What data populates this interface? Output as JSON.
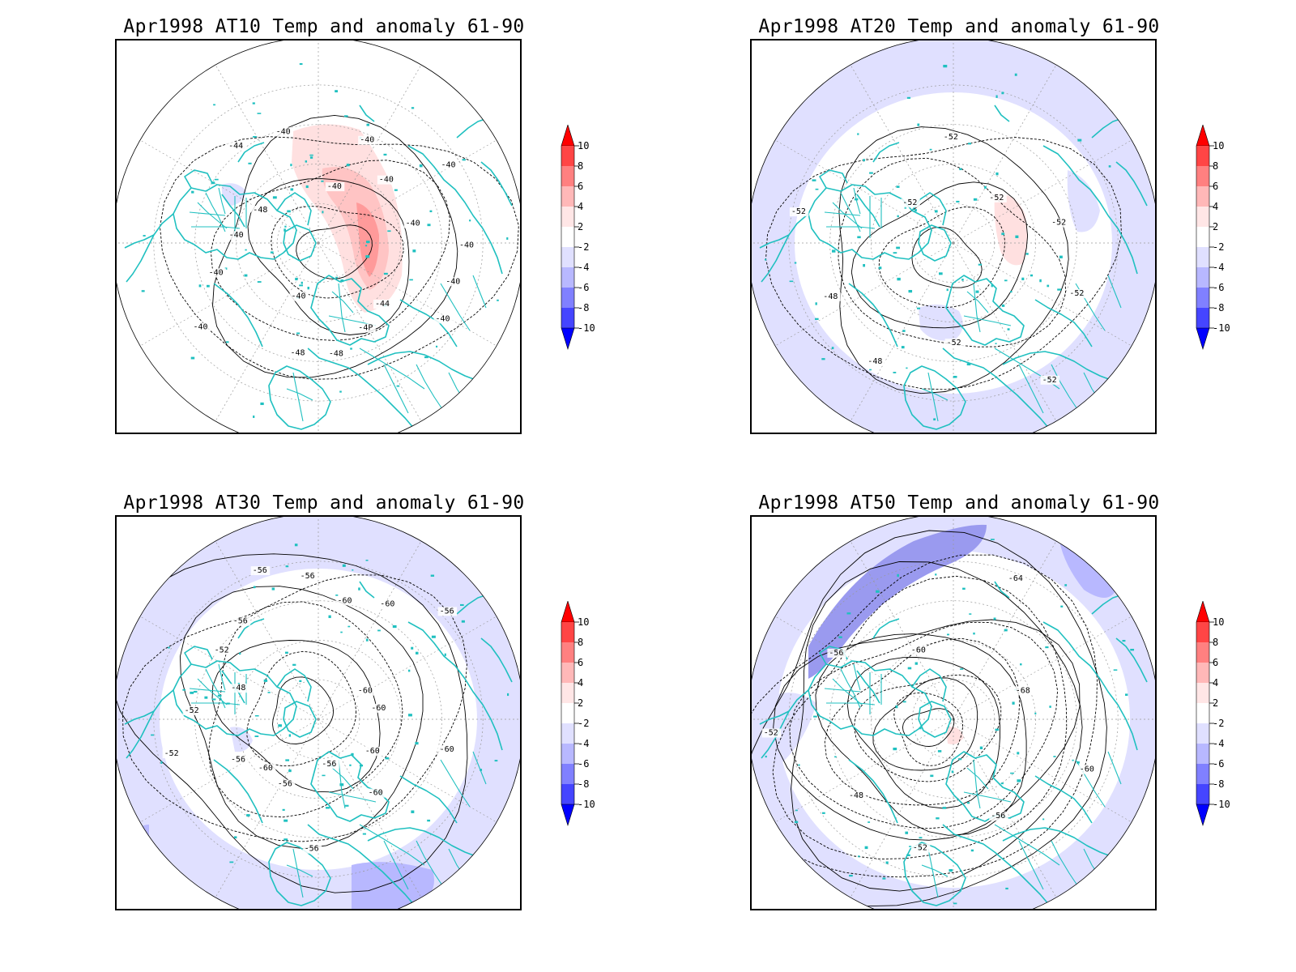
{
  "panels": [
    {
      "id": "at10",
      "title": "Apr1998 AT10 Temp and anomaly 61-90",
      "contour_labels": [
        "-40",
        "-40",
        "-44",
        "-4P",
        "-48",
        "-48",
        "-40",
        "-40",
        "-40",
        "-40",
        "-48",
        "-44",
        "-40",
        "-40",
        "-40",
        "-40",
        "-40",
        "-40",
        "-40"
      ],
      "anomaly": "warm"
    },
    {
      "id": "at20",
      "title": "Apr1998 AT20 Temp and anomaly 61-90",
      "contour_labels": [
        "-52",
        "-52",
        "-52",
        "-48",
        "-48",
        "-52",
        "-52",
        "-52",
        "-52",
        "-52"
      ],
      "anomaly": "cold-ring"
    },
    {
      "id": "at30",
      "title": "Apr1998 AT30 Temp and anomaly 61-90",
      "contour_labels": [
        "-60",
        "-60",
        "-60",
        "-56",
        "-56",
        "-56",
        "-60",
        "-56",
        "-52",
        "-52",
        "-48",
        "-52",
        "-56",
        "-56",
        "-56",
        "-60",
        "-60",
        "-56",
        "-60",
        "-60"
      ],
      "anomaly": "cold-ring"
    },
    {
      "id": "at50",
      "title": "Apr1998 AT50 Temp and anomaly 61-90",
      "contour_labels": [
        "-60",
        "-56",
        "-52",
        "-48",
        "-52",
        "-56",
        "-60",
        "-64",
        "-68"
      ],
      "anomaly": "cold-band"
    }
  ],
  "colorbar": {
    "labels": [
      "10",
      "8",
      "6",
      "4",
      "2",
      "-2",
      "-4",
      "-6",
      "-8",
      "-10"
    ],
    "colors": [
      "#ff0000",
      "#ff4545",
      "#ff8080",
      "#ffb8b8",
      "#ffe6e6",
      "#ffffff",
      "#e0e0ff",
      "#b8b8ff",
      "#8080ff",
      "#4545ff",
      "#0000ff"
    ]
  },
  "colors": {
    "coastline": "#20c0c0",
    "contour": "#000000",
    "grid": "#999999"
  }
}
